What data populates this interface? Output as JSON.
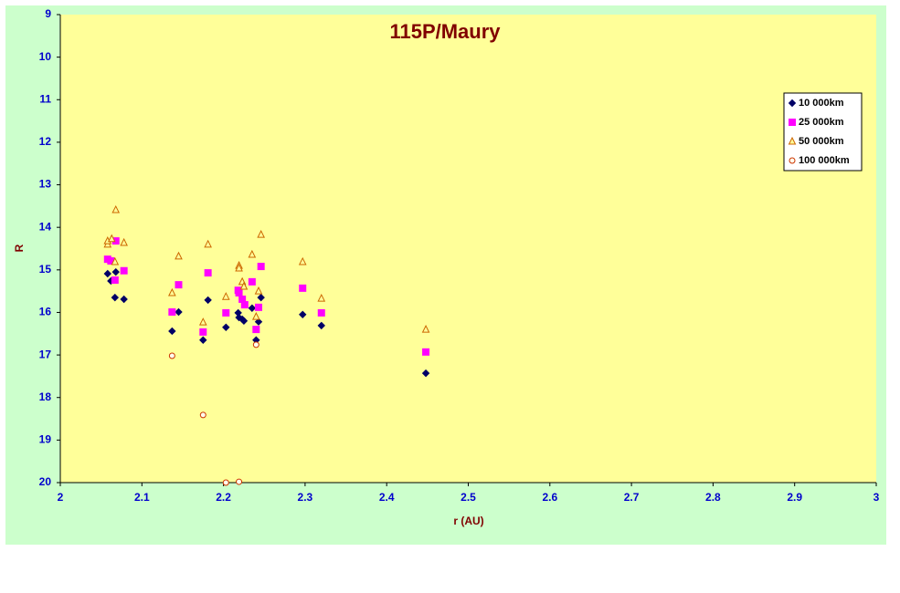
{
  "chart_data": {
    "type": "scatter",
    "title": "115P/Maury",
    "x_label": "r (AU)",
    "y_label": "R",
    "xlim": [
      2,
      3
    ],
    "xticks": [
      2,
      2.1,
      2.2,
      2.3,
      2.4,
      2.5,
      2.6,
      2.7,
      2.8,
      2.9,
      3
    ],
    "ylim": [
      9,
      20
    ],
    "yticks": [
      9,
      10,
      11,
      12,
      13,
      14,
      15,
      16,
      17,
      18,
      19,
      20
    ],
    "y_reversed": true,
    "grid": false,
    "legend": "upper right",
    "series": [
      {
        "name": "10 000km",
        "marker": "diamond",
        "color": "#000066",
        "fill": "#000066",
        "x": [
          2.058,
          2.062,
          2.068,
          2.067,
          2.078,
          2.137,
          2.145,
          2.175,
          2.181,
          2.203,
          2.218,
          2.219,
          2.223,
          2.225,
          2.235,
          2.24,
          2.243,
          2.246,
          2.297,
          2.32,
          2.448
        ],
        "values": [
          15.09,
          15.26,
          15.05,
          15.65,
          15.69,
          16.44,
          15.99,
          16.65,
          15.71,
          16.35,
          16.01,
          16.12,
          16.16,
          16.2,
          15.9,
          16.65,
          16.22,
          15.65,
          16.05,
          16.31,
          17.43
        ]
      },
      {
        "name": "25 000km",
        "marker": "square",
        "color": "#ff00ff",
        "fill": "#ff00ff",
        "x": [
          2.058,
          2.062,
          2.067,
          2.068,
          2.078,
          2.137,
          2.145,
          2.175,
          2.181,
          2.203,
          2.218,
          2.219,
          2.223,
          2.226,
          2.235,
          2.24,
          2.243,
          2.246,
          2.297,
          2.32,
          2.448
        ],
        "values": [
          14.75,
          14.79,
          15.24,
          14.32,
          15.02,
          15.99,
          15.35,
          16.46,
          15.07,
          16.01,
          15.48,
          15.54,
          15.69,
          15.82,
          15.28,
          16.4,
          15.88,
          14.92,
          15.43,
          16.01,
          16.93
        ]
      },
      {
        "name": "50 000km",
        "marker": "triangle",
        "color": "#cc6600",
        "fill": "#ffff99",
        "x": [
          2.058,
          2.058,
          2.063,
          2.067,
          2.068,
          2.078,
          2.137,
          2.145,
          2.175,
          2.181,
          2.203,
          2.219,
          2.219,
          2.223,
          2.225,
          2.235,
          2.24,
          2.243,
          2.246,
          2.297,
          2.32,
          2.448
        ],
        "values": [
          14.4,
          14.32,
          14.27,
          14.81,
          13.59,
          14.36,
          15.54,
          14.68,
          16.23,
          14.4,
          15.63,
          14.9,
          14.96,
          15.28,
          15.39,
          14.64,
          16.1,
          15.5,
          14.17,
          14.81,
          15.67,
          16.4
        ]
      },
      {
        "name": "100 000km",
        "marker": "circle",
        "color": "#cc3300",
        "fill": "#ffffee",
        "x": [
          2.137,
          2.175,
          2.203,
          2.219,
          2.24
        ],
        "values": [
          17.02,
          18.41,
          20,
          19.98,
          16.76
        ]
      }
    ]
  }
}
